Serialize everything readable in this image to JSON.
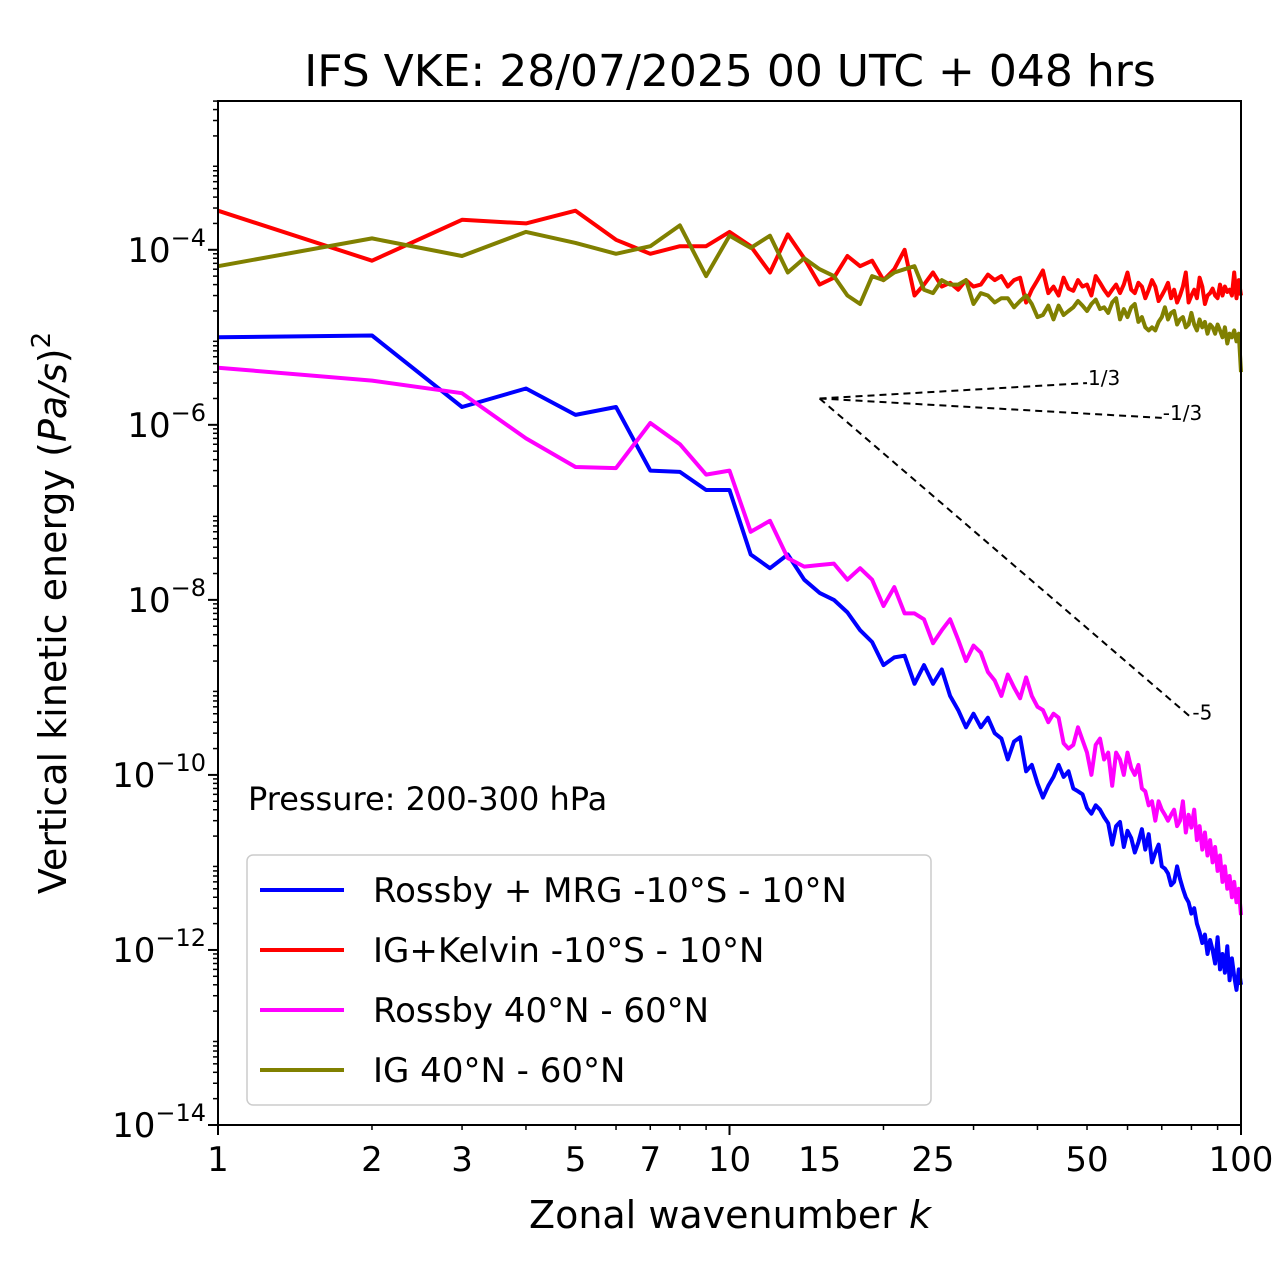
{
  "chart_data": {
    "type": "line",
    "title": "IFS VKE: 28/07/2025 00 UTC + 048 hrs",
    "xlabel_text": "Zonal wavenumber ",
    "xlabel_var": "k",
    "ylabel_text": "Vertical kinetic energy (",
    "ylabel_var": "Pa/s",
    "ylabel_close": ")",
    "ylabel_exp": "2",
    "xscale": "log",
    "yscale": "log",
    "xlim": [
      1,
      100
    ],
    "ylim_exponents": [
      -14.0,
      -2.3
    ],
    "x_ticks": [
      {
        "value": 1,
        "label": "1"
      },
      {
        "value": 2,
        "label": "2"
      },
      {
        "value": 3,
        "label": "3"
      },
      {
        "value": 5,
        "label": "5"
      },
      {
        "value": 7,
        "label": "7"
      },
      {
        "value": 10,
        "label": "10"
      },
      {
        "value": 15,
        "label": "15"
      },
      {
        "value": 25,
        "label": "25"
      },
      {
        "value": 50,
        "label": "50"
      },
      {
        "value": 100,
        "label": "100"
      }
    ],
    "y_ticks": [
      {
        "exp": -4,
        "base": "10",
        "sup": "−4"
      },
      {
        "exp": -6,
        "base": "10",
        "sup": "−6"
      },
      {
        "exp": -8,
        "base": "10",
        "sup": "−8"
      },
      {
        "exp": -10,
        "base": "10",
        "sup": "−10"
      },
      {
        "exp": -12,
        "base": "10",
        "sup": "−12"
      },
      {
        "exp": -14,
        "base": "10",
        "sup": "−14"
      }
    ],
    "annotation": "Pressure: 200-300 hPa",
    "legend_position": "lower-left",
    "series": [
      {
        "name": "Rossby + MRG -10°S - 10°N",
        "color": "#0000ff",
        "x": [
          1,
          2,
          3,
          4,
          5,
          6,
          7,
          8,
          9,
          10,
          11,
          12,
          13,
          14,
          15,
          16,
          17,
          18,
          19,
          20,
          21,
          22,
          23,
          24,
          25,
          26,
          27,
          28,
          29,
          30,
          31,
          32,
          33,
          34,
          35,
          36,
          37,
          38,
          39,
          40,
          41,
          42,
          43,
          44,
          45,
          46,
          47,
          48,
          49,
          50,
          51,
          52,
          53,
          54,
          55,
          56,
          57,
          58,
          59,
          60,
          61,
          62,
          63,
          64,
          65,
          66,
          67,
          68,
          69,
          70,
          71,
          72,
          73,
          74,
          75,
          76,
          77,
          78,
          79,
          80,
          81,
          82,
          83,
          84,
          85,
          86,
          87,
          88,
          89,
          90,
          91,
          92,
          93,
          94,
          95,
          96,
          97,
          98,
          99,
          100
        ],
        "y": [
          1e-05,
          1.05e-05,
          1.6e-06,
          2.6e-06,
          1.3e-06,
          1.6e-06,
          3e-07,
          2.9e-07,
          1.8e-07,
          1.8e-07,
          3.3e-08,
          2.3e-08,
          3.3e-08,
          1.7e-08,
          1.2e-08,
          1e-08,
          7.2e-09,
          4.5e-09,
          3.3e-09,
          1.8e-09,
          2.2e-09,
          2.3e-09,
          1.1e-09,
          1.8e-09,
          1.1e-09,
          1.6e-09,
          8e-10,
          5.5e-10,
          3.5e-10,
          5e-10,
          3.5e-10,
          4.5e-10,
          3e-10,
          2.6e-10,
          1.5e-10,
          2.4e-10,
          2.7e-10,
          1.1e-10,
          1.3e-10,
          8e-11,
          5.5e-11,
          7.5e-11,
          9.5e-11,
          1.3e-10,
          9.5e-11,
          1.1e-10,
          7e-11,
          6.5e-11,
          6e-11,
          4.2e-11,
          3.6e-11,
          4.5e-11,
          4e-11,
          3.3e-11,
          2.8e-11,
          1.6e-11,
          2.6e-11,
          2.9e-11,
          1.5e-11,
          2.3e-11,
          1.9e-11,
          1.3e-11,
          1.7e-11,
          2.4e-11,
          1.4e-11,
          2.1e-11,
          1e-11,
          1.3e-11,
          1.6e-11,
          9e-12,
          8.5e-12,
          7.5e-12,
          5.5e-12,
          6e-12,
          9e-12,
          6.5e-12,
          5e-12,
          4e-12,
          3.5e-12,
          2.6e-12,
          3e-12,
          2e-12,
          1.6e-12,
          1.2e-12,
          1.5e-12,
          9e-13,
          1.3e-12,
          1e-12,
          7e-13,
          1.4e-12,
          6e-13,
          9e-13,
          5.5e-13,
          1.1e-12,
          4.5e-13,
          8e-13,
          5e-13,
          3.5e-13,
          6e-13,
          4e-13
        ]
      },
      {
        "name": "IG+Kelvin -10°S - 10°N",
        "color": "#ff0000",
        "x": [
          1,
          2,
          3,
          4,
          5,
          6,
          7,
          8,
          9,
          10,
          11,
          12,
          13,
          14,
          15,
          16,
          17,
          18,
          19,
          20,
          21,
          22,
          23,
          24,
          25,
          26,
          27,
          28,
          29,
          30,
          31,
          32,
          33,
          34,
          35,
          36,
          37,
          38,
          39,
          40,
          41,
          42,
          43,
          44,
          45,
          46,
          47,
          48,
          49,
          50,
          51,
          52,
          53,
          54,
          55,
          56,
          57,
          58,
          59,
          60,
          61,
          62,
          63,
          64,
          65,
          66,
          67,
          68,
          69,
          70,
          71,
          72,
          73,
          74,
          75,
          76,
          77,
          78,
          79,
          80,
          81,
          82,
          83,
          84,
          85,
          86,
          87,
          88,
          89,
          90,
          91,
          92,
          93,
          94,
          95,
          96,
          97,
          98,
          99,
          100
        ],
        "y": [
          0.00028,
          7.5e-05,
          0.00022,
          0.0002,
          0.00028,
          0.00013,
          9e-05,
          0.00011,
          0.00011,
          0.00016,
          0.00011,
          5.5e-05,
          0.00015,
          8e-05,
          4e-05,
          4.8e-05,
          8.5e-05,
          6.5e-05,
          7.5e-05,
          4.5e-05,
          6e-05,
          0.0001,
          3e-05,
          4e-05,
          5.5e-05,
          3.8e-05,
          4.2e-05,
          3.5e-05,
          4.5e-05,
          3.8e-05,
          4e-05,
          5.2e-05,
          4.5e-05,
          5e-05,
          3.8e-05,
          4.5e-05,
          4.8e-05,
          2.5e-05,
          3.5e-05,
          4.5e-05,
          5.8e-05,
          3.2e-05,
          3.8e-05,
          3e-05,
          4.8e-05,
          3.6e-05,
          3.4e-05,
          4.5e-05,
          3.8e-05,
          4e-05,
          3e-05,
          5e-05,
          4.2e-05,
          3.5e-05,
          3e-05,
          3.5e-05,
          4e-05,
          3.2e-05,
          4e-05,
          5.5e-05,
          3.5e-05,
          3.2e-05,
          4.2e-05,
          3.8e-05,
          2.8e-05,
          3.5e-05,
          4.5e-05,
          3.8e-05,
          2.6e-05,
          3e-05,
          3.5e-05,
          4.2e-05,
          2.8e-05,
          3.5e-05,
          2.5e-05,
          3e-05,
          3.8e-05,
          5.5e-05,
          2.5e-05,
          3e-05,
          3.5e-05,
          2.8e-05,
          4.8e-05,
          3.8e-05,
          2.4e-05,
          3e-05,
          3.2e-05,
          3.6e-05,
          3e-05,
          2.8e-05,
          4e-05,
          3e-05,
          3.8e-05,
          3.3e-05,
          3.5e-05,
          3e-05,
          5.5e-05,
          2.8e-05,
          4.5e-05,
          3e-05
        ]
      },
      {
        "name": "Rossby 40°N - 60°N",
        "color": "#ff00ff",
        "x": [
          1,
          2,
          3,
          4,
          5,
          6,
          7,
          8,
          9,
          10,
          11,
          12,
          13,
          14,
          15,
          16,
          17,
          18,
          19,
          20,
          21,
          22,
          23,
          24,
          25,
          26,
          27,
          28,
          29,
          30,
          31,
          32,
          33,
          34,
          35,
          36,
          37,
          38,
          39,
          40,
          41,
          42,
          43,
          44,
          45,
          46,
          47,
          48,
          49,
          50,
          51,
          52,
          53,
          54,
          55,
          56,
          57,
          58,
          59,
          60,
          61,
          62,
          63,
          64,
          65,
          66,
          67,
          68,
          69,
          70,
          71,
          72,
          73,
          74,
          75,
          76,
          77,
          78,
          79,
          80,
          81,
          82,
          83,
          84,
          85,
          86,
          87,
          88,
          89,
          90,
          91,
          92,
          93,
          94,
          95,
          96,
          97,
          98,
          99,
          100
        ],
        "y": [
          4.5e-06,
          3.2e-06,
          2.3e-06,
          7e-07,
          3.3e-07,
          3.2e-07,
          1.05e-06,
          6e-07,
          2.7e-07,
          3e-07,
          6e-08,
          8e-08,
          3e-08,
          2.4e-08,
          2.5e-08,
          2.6e-08,
          1.7e-08,
          2.3e-08,
          1.7e-08,
          8.5e-09,
          1.4e-08,
          7e-09,
          7e-09,
          6e-09,
          3.2e-09,
          4.5e-09,
          6e-09,
          3.5e-09,
          2e-09,
          3e-09,
          2.5e-09,
          1.5e-09,
          1.2e-09,
          8e-10,
          1.4e-09,
          1e-09,
          7.5e-10,
          1.3e-09,
          8e-10,
          6e-10,
          5.5e-10,
          4e-10,
          5e-10,
          4.5e-10,
          2.3e-10,
          2e-10,
          2.2e-10,
          3.5e-10,
          2.5e-10,
          1.8e-10,
          1e-10,
          2.2e-10,
          2.6e-10,
          1.5e-10,
          1.8e-10,
          7.5e-11,
          1.8e-10,
          1.5e-10,
          1e-10,
          1.8e-10,
          1.2e-10,
          1e-10,
          1.3e-10,
          7e-11,
          6.5e-11,
          4.5e-11,
          5e-11,
          3e-11,
          5e-11,
          4e-11,
          3.5e-11,
          3e-11,
          3.5e-11,
          4e-11,
          2.6e-11,
          3e-11,
          5e-11,
          2.2e-11,
          3.5e-11,
          2.5e-11,
          4e-11,
          1.8e-11,
          2.6e-11,
          1.4e-11,
          2.2e-11,
          1.2e-11,
          1.8e-11,
          1e-11,
          1.5e-11,
          8e-12,
          1.2e-11,
          6e-12,
          9e-12,
          5e-12,
          7e-12,
          4e-12,
          6e-12,
          3.5e-12,
          5e-12,
          2.5e-12
        ]
      },
      {
        "name": "IG 40°N - 60°N",
        "color": "#808000",
        "x": [
          1,
          2,
          3,
          4,
          5,
          6,
          7,
          8,
          9,
          10,
          11,
          12,
          13,
          14,
          15,
          16,
          17,
          18,
          19,
          20,
          21,
          22,
          23,
          24,
          25,
          26,
          27,
          28,
          29,
          30,
          31,
          32,
          33,
          34,
          35,
          36,
          37,
          38,
          39,
          40,
          41,
          42,
          43,
          44,
          45,
          46,
          47,
          48,
          49,
          50,
          51,
          52,
          53,
          54,
          55,
          56,
          57,
          58,
          59,
          60,
          61,
          62,
          63,
          64,
          65,
          66,
          67,
          68,
          69,
          70,
          71,
          72,
          73,
          74,
          75,
          76,
          77,
          78,
          79,
          80,
          81,
          82,
          83,
          84,
          85,
          86,
          87,
          88,
          89,
          90,
          91,
          92,
          93,
          94,
          95,
          96,
          97,
          98,
          99,
          100
        ],
        "y": [
          6.5e-05,
          0.000135,
          8.5e-05,
          0.00016,
          0.00012,
          9e-05,
          0.00011,
          0.00019,
          5e-05,
          0.000145,
          0.000105,
          0.000145,
          5.5e-05,
          8e-05,
          6e-05,
          5e-05,
          3e-05,
          2.4e-05,
          5e-05,
          4.5e-05,
          5.5e-05,
          6e-05,
          6.5e-05,
          3.5e-05,
          3.2e-05,
          4.5e-05,
          4e-05,
          4e-05,
          4.5e-05,
          2.4e-05,
          3.2e-05,
          3e-05,
          2.5e-05,
          2.8e-05,
          2.8e-05,
          2.2e-05,
          2.6e-05,
          3e-05,
          2.4e-05,
          1.7e-05,
          1.8e-05,
          2.3e-05,
          1.6e-05,
          2.3e-05,
          1.8e-05,
          2e-05,
          2.2e-05,
          2.6e-05,
          2.3e-05,
          2e-05,
          2.4e-05,
          2.7e-05,
          2.1e-05,
          2.2e-05,
          1.9e-05,
          2.5e-05,
          2.8e-05,
          1.6e-05,
          2.1e-05,
          1.7e-05,
          2.2e-05,
          2.4e-05,
          1.5e-05,
          1.7e-05,
          1.3e-05,
          1.2e-05,
          1.3e-05,
          1.2e-05,
          1.5e-05,
          1.7e-05,
          2.2e-05,
          1.6e-05,
          1.9e-05,
          2e-05,
          1.4e-05,
          1.6e-05,
          1.7e-05,
          1.3e-05,
          1.4e-05,
          1.9e-05,
          1.4e-05,
          1.2e-05,
          1.6e-05,
          1.3e-05,
          1.5e-05,
          1.1e-05,
          1.4e-05,
          1.3e-05,
          1.1e-05,
          1.4e-05,
          1.2e-05,
          1e-05,
          1.3e-05,
          8.5e-06,
          1.1e-05,
          1e-05,
          1.2e-05,
          9e-06,
          1.1e-05,
          4e-06
        ]
      }
    ],
    "reference_lines": [
      {
        "label": "1/3",
        "from": [
          15,
          2e-06
        ],
        "to": [
          50,
          3e-06
        ]
      },
      {
        "label": "-1/3",
        "from": [
          15,
          2e-06
        ],
        "to": [
          70,
          1.2e-06
        ]
      },
      {
        "label": "-5",
        "from": [
          15,
          2e-06
        ],
        "to": [
          80,
          4.5e-10
        ]
      }
    ]
  }
}
